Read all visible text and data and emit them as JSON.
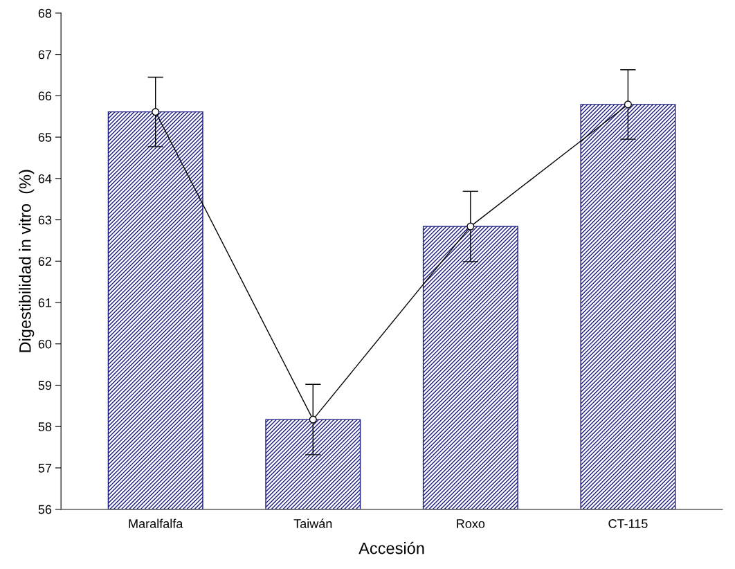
{
  "chart_data": {
    "type": "bar",
    "xlabel": "Accesión",
    "ylabel": "Digestibilidad in vitro  (%)",
    "categories": [
      "Maralfalfa",
      "Taiwán",
      "Roxo",
      "CT-115"
    ],
    "series": [
      {
        "color": "#1a1a80",
        "values": [
          65.61,
          58.17,
          62.84,
          65.79
        ],
        "errors": [
          0.84,
          0.85,
          0.85,
          0.84
        ]
      },
      {
        "type": "line",
        "color": "#000000",
        "marker": "circle",
        "values": [
          65.61,
          58.17,
          62.84,
          65.79
        ]
      }
    ],
    "ylim": [
      56,
      68
    ],
    "yticks": [
      56,
      57,
      58,
      59,
      60,
      61,
      62,
      63,
      64,
      65,
      66,
      67,
      68
    ],
    "grid": false,
    "legend": false
  }
}
